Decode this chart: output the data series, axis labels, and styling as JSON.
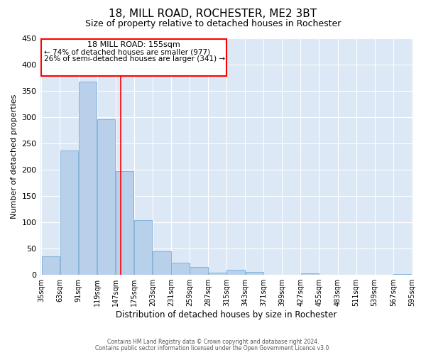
{
  "title": "18, MILL ROAD, ROCHESTER, ME2 3BT",
  "subtitle": "Size of property relative to detached houses in Rochester",
  "xlabel": "Distribution of detached houses by size in Rochester",
  "ylabel": "Number of detached properties",
  "bar_color": "#b8d0ea",
  "bar_edge_color": "#7aadd4",
  "background_color": "#dce8f5",
  "vline_x": 155,
  "vline_color": "red",
  "annotation_title": "18 MILL ROAD: 155sqm",
  "annotation_line1": "← 74% of detached houses are smaller (977)",
  "annotation_line2": "26% of semi-detached houses are larger (341) →",
  "bin_edges": [
    35,
    63,
    91,
    119,
    147,
    175,
    203,
    231,
    259,
    287,
    315,
    343,
    371,
    399,
    427,
    455,
    483,
    511,
    539,
    567,
    595
  ],
  "bin_values": [
    35,
    236,
    368,
    296,
    198,
    104,
    45,
    23,
    15,
    5,
    10,
    6,
    0,
    0,
    3,
    0,
    0,
    0,
    0,
    2
  ],
  "ylim": [
    0,
    450
  ],
  "yticks": [
    0,
    50,
    100,
    150,
    200,
    250,
    300,
    350,
    400,
    450
  ],
  "footer1": "Contains HM Land Registry data © Crown copyright and database right 2024.",
  "footer2": "Contains public sector information licensed under the Open Government Licence v3.0."
}
